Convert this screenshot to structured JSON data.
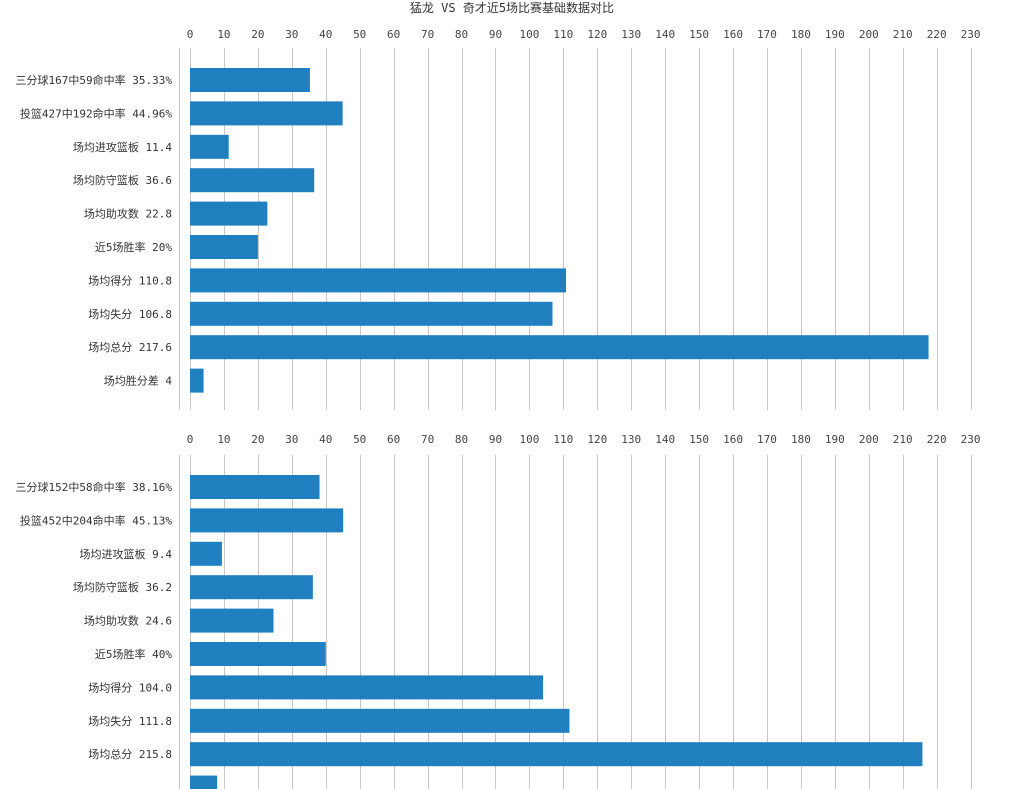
{
  "title": "猛龙 VS 奇才近5场比赛基础数据对比",
  "chart_data": [
    {
      "type": "bar",
      "orientation": "horizontal",
      "title": "猛龙 VS 奇才近5场比赛基础数据对比",
      "xlim": [
        0,
        230
      ],
      "x_ticks": [
        0,
        10,
        20,
        30,
        40,
        50,
        60,
        70,
        80,
        90,
        100,
        110,
        120,
        130,
        140,
        150,
        160,
        170,
        180,
        190,
        200,
        210,
        220,
        230
      ],
      "tick_position": "top",
      "grid": true,
      "bar_color": "#1f7fbf",
      "categories": [
        "三分球167中59命中率 35.33%",
        "投篮427中192命中率 44.96%",
        "场均进攻篮板 11.4",
        "场均防守篮板 36.6",
        "场均助攻数 22.8",
        "近5场胜率 20%",
        "场均得分 110.8",
        "场均失分 106.8",
        "场均总分 217.6",
        "场均胜分差 4"
      ],
      "values": [
        35.33,
        44.96,
        11.4,
        36.6,
        22.8,
        20,
        110.8,
        106.8,
        217.6,
        4
      ]
    },
    {
      "type": "bar",
      "orientation": "horizontal",
      "xlim": [
        0,
        230
      ],
      "x_ticks": [
        0,
        10,
        20,
        30,
        40,
        50,
        60,
        70,
        80,
        90,
        100,
        110,
        120,
        130,
        140,
        150,
        160,
        170,
        180,
        190,
        200,
        210,
        220,
        230
      ],
      "tick_position": "top",
      "grid": true,
      "bar_color": "#1f7fbf",
      "categories": [
        "三分球152中58命中率 38.16%",
        "投篮452中204命中率 45.13%",
        "场均进攻篮板 9.4",
        "场均防守篮板 36.2",
        "场均助攻数 24.6",
        "近5场胜率 40%",
        "场均得分 104.0",
        "场均失分 111.8",
        "场均总分 215.8",
        ""
      ],
      "values": [
        38.16,
        45.13,
        9.4,
        36.2,
        24.6,
        40,
        104.0,
        111.8,
        215.8,
        8
      ]
    }
  ]
}
